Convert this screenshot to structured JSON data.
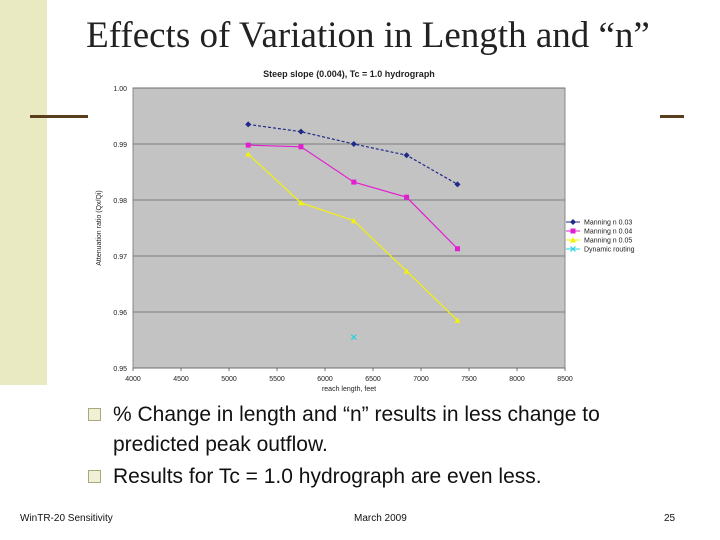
{
  "slide": {
    "title": "Effects of Variation in Length and “n”",
    "bullets": [
      "% Change in length and “n” results in less change to predicted peak outflow.",
      "Results for Tc = 1.0 hydrograph are even less."
    ],
    "footer": {
      "left": "WinTR-20 Sensitivity",
      "center": "March 2009",
      "page_number": "25"
    }
  },
  "chart_data": {
    "type": "line",
    "title": "Steep slope (0.004), Tc = 1.0 hydrograph",
    "xlabel": "reach length, feet",
    "ylabel": "Attenuation ratio (Qx/Qi)",
    "xlim": [
      4000,
      8500
    ],
    "ylim": [
      0.95,
      1.0
    ],
    "x_ticks": [
      "4000",
      "4500",
      "5000",
      "5500",
      "6000",
      "6500",
      "7000",
      "7500",
      "8000",
      "8500"
    ],
    "y_ticks": [
      "0.95",
      "0.96",
      "0.97",
      "0.98",
      "0.99",
      "1.00"
    ],
    "legend_position": "right",
    "series": [
      {
        "name": "Manning n 0.03",
        "color": "#1f2a8a",
        "marker": "diamond",
        "x": [
          5200,
          5750,
          6300,
          6850,
          7380
        ],
        "y": [
          0.9935,
          0.9922,
          0.99,
          0.988,
          0.9828
        ]
      },
      {
        "name": "Manning n 0.04",
        "color": "#e020d0",
        "marker": "square",
        "x": [
          5200,
          5750,
          6300,
          6850,
          7380
        ],
        "y": [
          0.9898,
          0.9895,
          0.9832,
          0.9805,
          0.9713
        ]
      },
      {
        "name": "Manning n 0.05",
        "color": "#f2f20a",
        "marker": "triangle",
        "x": [
          5200,
          5750,
          6300,
          6850,
          7380
        ],
        "y": [
          0.9882,
          0.9795,
          0.9763,
          0.9673,
          0.9585
        ]
      },
      {
        "name": "Dynamic routing",
        "color": "#2ad0e0",
        "marker": "x",
        "x": [
          6300
        ],
        "y": [
          0.9555
        ]
      }
    ]
  }
}
